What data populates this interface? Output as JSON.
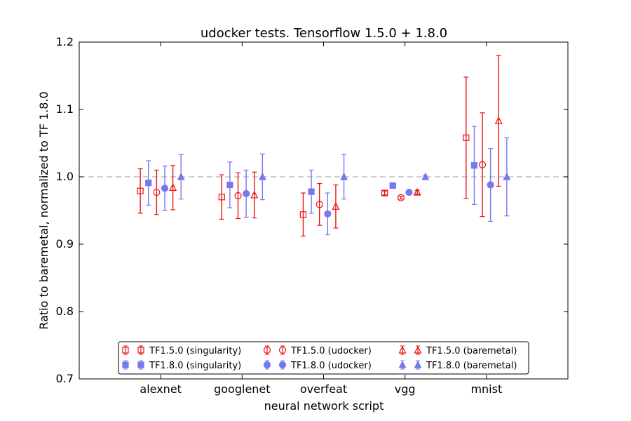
{
  "chart_data": {
    "type": "scatter",
    "title": "udocker tests. Tensorflow 1.5.0 + 1.8.0",
    "xlabel": "neural network script",
    "ylabel": "Ratio to baremetal, normalized to TF 1.8.0",
    "categories": [
      "alexnet",
      "googlenet",
      "overfeat",
      "vgg",
      "mnist"
    ],
    "ylim": [
      0.7,
      1.2
    ],
    "yticks": [
      "0.7",
      "0.8",
      "0.9",
      "1.0",
      "1.1",
      "1.2"
    ],
    "reference_line": 1.0,
    "grid": false,
    "legend_position": "lower center",
    "colors": {
      "tf15": "#ee1111",
      "tf18": "#7777ee"
    },
    "series": [
      {
        "name": "TF1.5.0 (singularity)",
        "marker": "square",
        "filled": false,
        "color": "#ee1111",
        "offset": -0.25,
        "values": [
          0.979,
          0.97,
          0.944,
          0.976,
          1.058
        ],
        "errors": [
          0.033,
          0.033,
          0.032,
          0.003,
          0.09
        ]
      },
      {
        "name": "TF1.8.0 (singularity)",
        "marker": "square",
        "filled": true,
        "color": "#7777ee",
        "offset": -0.15,
        "values": [
          0.991,
          0.988,
          0.978,
          0.987,
          1.017
        ],
        "errors": [
          0.033,
          0.034,
          0.032,
          0.002,
          0.058
        ]
      },
      {
        "name": "TF1.5.0 (udocker)",
        "marker": "circle",
        "filled": false,
        "color": "#ee1111",
        "offset": -0.05,
        "values": [
          0.977,
          0.972,
          0.959,
          0.969,
          1.018
        ],
        "errors": [
          0.033,
          0.034,
          0.031,
          0.002,
          0.077
        ]
      },
      {
        "name": "TF1.8.0 (udocker)",
        "marker": "circle",
        "filled": true,
        "color": "#7777ee",
        "offset": 0.05,
        "values": [
          0.983,
          0.975,
          0.945,
          0.977,
          0.988
        ],
        "errors": [
          0.033,
          0.035,
          0.031,
          0.002,
          0.054
        ]
      },
      {
        "name": "TF1.5.0 (baremetal)",
        "marker": "triangle",
        "filled": false,
        "color": "#ee1111",
        "offset": 0.15,
        "values": [
          0.984,
          0.973,
          0.956,
          0.977,
          1.083
        ],
        "errors": [
          0.033,
          0.034,
          0.032,
          0.003,
          0.097
        ]
      },
      {
        "name": "TF1.8.0 (baremetal)",
        "marker": "triangle",
        "filled": true,
        "color": "#7777ee",
        "offset": 0.25,
        "values": [
          1.0,
          1.0,
          1.0,
          1.0,
          1.0
        ],
        "errors": [
          0.033,
          0.034,
          0.033,
          0.002,
          0.058
        ]
      }
    ]
  }
}
